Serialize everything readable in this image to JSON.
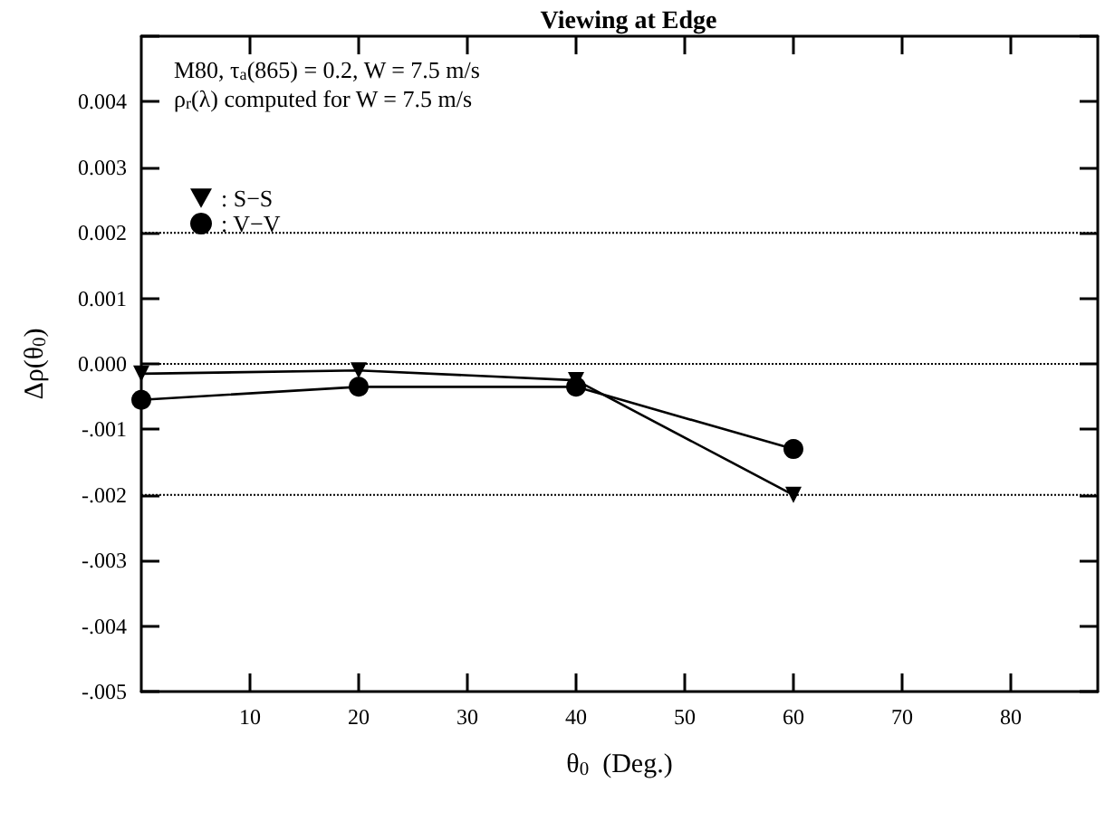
{
  "chart_data": {
    "type": "line",
    "title": "Viewing at Edge",
    "xlabel": "θ$_{0}$  (Deg.)",
    "ylabel": "Δρ(θ$_{0}$)",
    "annotations": [
      "M80, τ$_{a}$(865) = 0.2, W = 7.5 m/s",
      "ρ$_{r}$(λ) computed for W = 7.5 m/s"
    ],
    "x": [
      0,
      20,
      40,
      60
    ],
    "series": [
      {
        "name": ": S−S",
        "color": "#000000",
        "marker": "triangle",
        "values": [
          -0.00015,
          -0.0001,
          -0.00025,
          -0.002
        ]
      },
      {
        "name": ": V−V",
        "color": "#000000",
        "marker": "circle",
        "values": [
          -0.00055,
          -0.00035,
          -0.00035,
          -0.0013
        ]
      }
    ],
    "xlim": [
      0,
      88
    ],
    "xticks": [
      10,
      20,
      30,
      40,
      50,
      60,
      70,
      80
    ],
    "ylim": [
      -0.005,
      0.005
    ],
    "yticks": [
      {
        "value": -0.005,
        "label": "-.005"
      },
      {
        "value": -0.004,
        "label": "-.004"
      },
      {
        "value": -0.003,
        "label": "-.003"
      },
      {
        "value": -0.002,
        "label": "-.002"
      },
      {
        "value": -0.001,
        "label": "-.001"
      },
      {
        "value": 0,
        "label": "0.000"
      },
      0.001,
      0.002,
      0.003,
      0.004,
      {
        "value": 0.005,
        "label": null
      }
    ],
    "ref_lines": [
      {
        "axis": "y",
        "value": 0.002,
        "line_style": "dotted"
      },
      {
        "axis": "y",
        "value": 0,
        "line_style": "dotted"
      },
      {
        "axis": "y",
        "value": -0.002,
        "line_style": "dotted"
      }
    ],
    "grid": false,
    "legend": "top left",
    "line_style": "solid"
  }
}
